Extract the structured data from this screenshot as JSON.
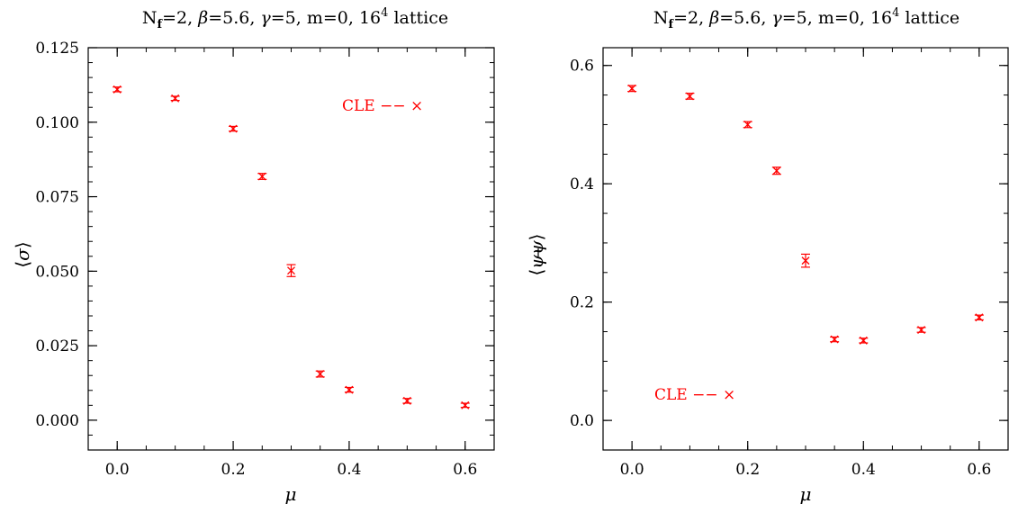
{
  "colors": {
    "data": "#ff0000",
    "axes": "#000000",
    "background": "#ffffff"
  },
  "chart_data": [
    {
      "type": "scatter",
      "title_parts": [
        "N",
        "f",
        "=2, ",
        "β",
        "=5.6, ",
        "γ",
        "=5, m=0, 16",
        "4",
        " lattice"
      ],
      "xlabel": "μ",
      "ylabel_sigma": "σ",
      "xlim": [
        -0.05,
        0.65
      ],
      "ylim": [
        -0.01,
        0.125
      ],
      "xticks": [
        0.0,
        0.2,
        0.4,
        0.6
      ],
      "xtick_labels": [
        "0.0",
        "0.2",
        "0.4",
        "0.6"
      ],
      "yticks": [
        0.0,
        0.025,
        0.05,
        0.075,
        0.1,
        0.125
      ],
      "ytick_labels": [
        "0.000",
        "0.025",
        "0.050",
        "0.075",
        "0.100",
        "0.125"
      ],
      "legend": {
        "text": "CLE −− ×",
        "placement": "top-right"
      },
      "series": [
        {
          "name": "CLE",
          "x": [
            0.0,
            0.1,
            0.2,
            0.25,
            0.3,
            0.35,
            0.4,
            0.5,
            0.6
          ],
          "y": [
            0.111,
            0.108,
            0.0978,
            0.0818,
            0.0502,
            0.0155,
            0.0102,
            0.0065,
            0.005
          ],
          "err": [
            0.0008,
            0.0007,
            0.0008,
            0.001,
            0.002,
            0.001,
            0.0008,
            0.0008,
            0.0007
          ]
        }
      ]
    },
    {
      "type": "scatter",
      "title_parts": [
        "N",
        "f",
        "=2, ",
        "β",
        "=5.6, ",
        "γ",
        "=5, m=0, 16",
        "4",
        " lattice"
      ],
      "xlabel": "μ",
      "ylabel_psibar": "ψψ",
      "xlim": [
        -0.05,
        0.65
      ],
      "ylim": [
        -0.05,
        0.63
      ],
      "xticks": [
        0.0,
        0.2,
        0.4,
        0.6
      ],
      "xtick_labels": [
        "0.0",
        "0.2",
        "0.4",
        "0.6"
      ],
      "yticks": [
        0.0,
        0.2,
        0.4,
        0.6
      ],
      "ytick_labels": [
        "0.0",
        "0.2",
        "0.4",
        "0.6"
      ],
      "legend": {
        "text": "CLE −− ×",
        "placement": "bottom-left"
      },
      "series": [
        {
          "name": "CLE",
          "x": [
            0.0,
            0.1,
            0.2,
            0.25,
            0.3,
            0.35,
            0.4,
            0.5,
            0.6
          ],
          "y": [
            0.561,
            0.548,
            0.5,
            0.422,
            0.27,
            0.137,
            0.135,
            0.153,
            0.174
          ],
          "err": [
            0.005,
            0.005,
            0.005,
            0.006,
            0.011,
            0.004,
            0.004,
            0.004,
            0.004
          ]
        }
      ]
    }
  ]
}
